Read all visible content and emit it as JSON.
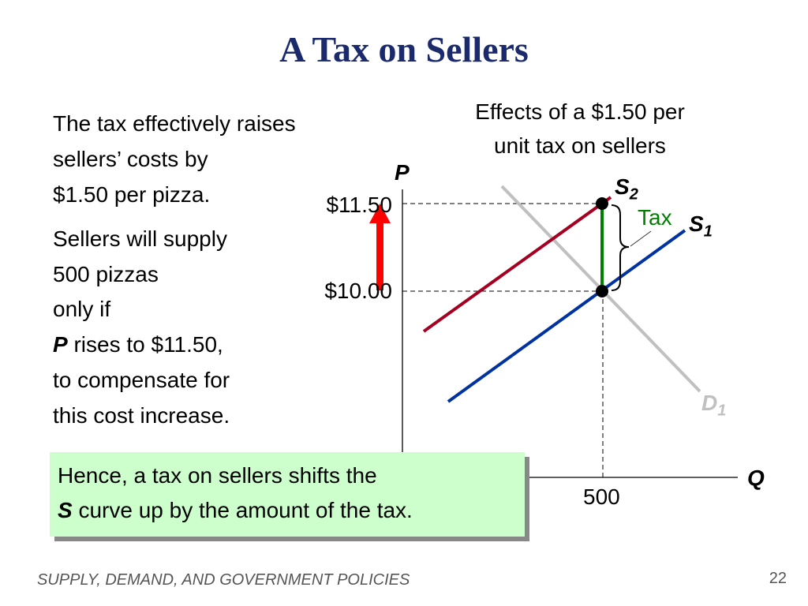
{
  "slide": {
    "title": "A Tax on Sellers",
    "para1": [
      "The tax effectively raises",
      "sellers’ costs by",
      "$1.50 per pizza."
    ],
    "para2": {
      "line1": "Sellers will supply",
      "line2": "500 pizzas",
      "line3": "only if",
      "line4_italic": "P",
      "line4_rest": " rises to $11.50,",
      "line5": "to compensate for",
      "line6": "this cost increase."
    },
    "effects_heading": [
      "Effects of a $1.50 per",
      "unit tax on sellers"
    ],
    "callout": {
      "line1": "Hence, a tax on sellers shifts the",
      "line2_italic": "S",
      "line2_rest": " curve up by the amount of the tax.",
      "bg_color": "#ccffcc"
    },
    "footer": "SUPPLY, DEMAND, AND GOVERNMENT POLICIES",
    "page_number": "22"
  },
  "diagram": {
    "y_axis_label": "P",
    "x_axis_label": "Q",
    "price_labels": [
      "$11.50",
      "$10.00"
    ],
    "quantity_label": "500",
    "curves": {
      "S1": {
        "label": "S",
        "sub": "1",
        "color": "#0033a0"
      },
      "S2": {
        "label": "S",
        "sub": "2",
        "color": "#a50021"
      },
      "D1": {
        "label": "D",
        "sub": "1",
        "color": "#c0c0c0"
      }
    },
    "tax_label": "Tax",
    "tax_color": "#008000",
    "arrow_color": "#ff0000"
  }
}
